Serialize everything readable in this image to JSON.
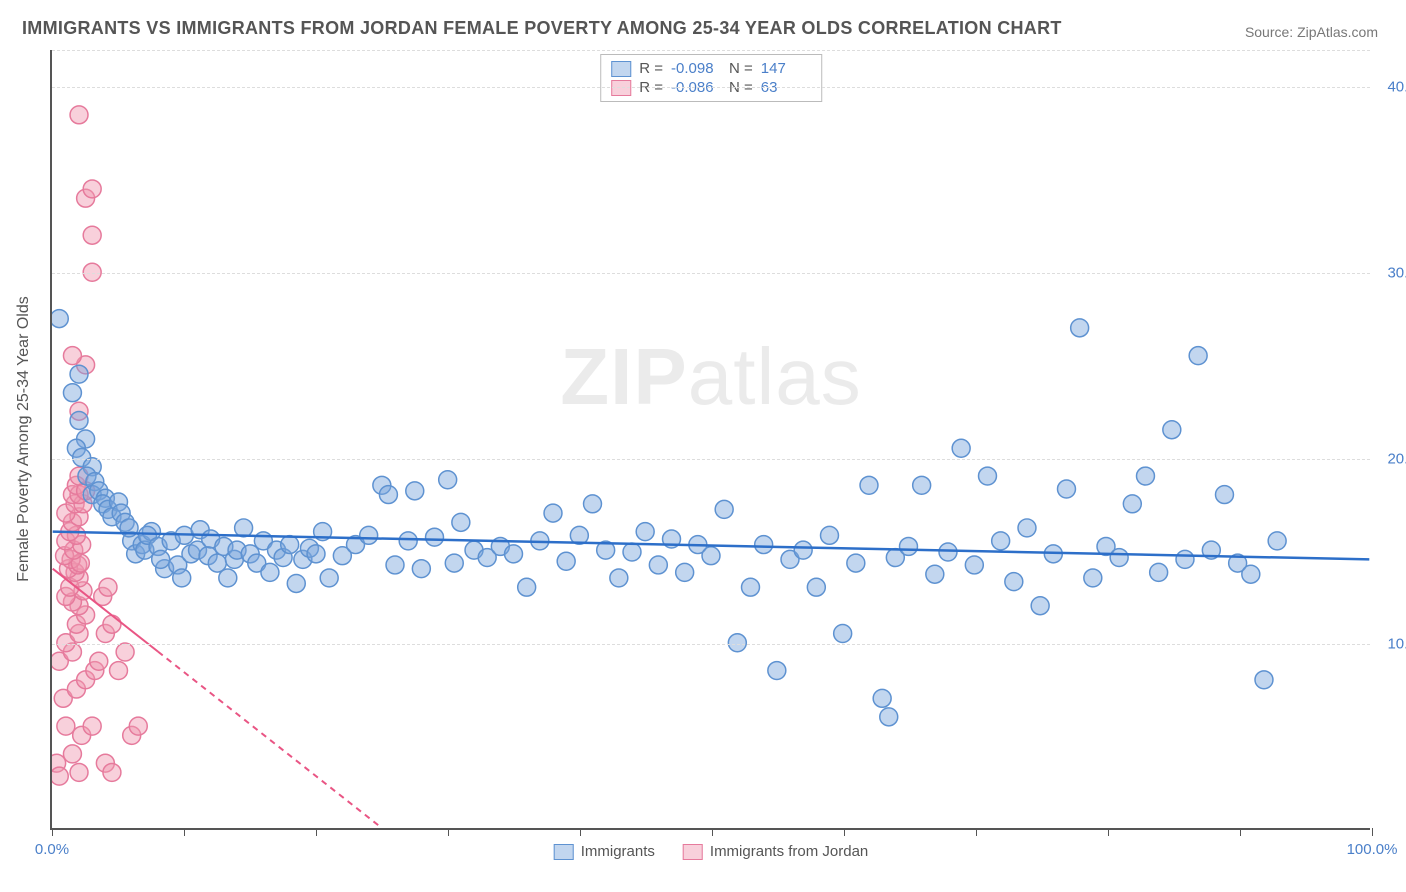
{
  "chart": {
    "type": "scatter",
    "title": "IMMIGRANTS VS IMMIGRANTS FROM JORDAN FEMALE POVERTY AMONG 25-34 YEAR OLDS CORRELATION CHART",
    "source": "Source: ZipAtlas.com",
    "ylabel": "Female Poverty Among 25-34 Year Olds",
    "watermark_bold": "ZIP",
    "watermark_rest": "atlas",
    "xlim": [
      0,
      100
    ],
    "ylim": [
      0,
      42
    ],
    "xtick_positions": [
      0,
      10,
      20,
      30,
      40,
      50,
      60,
      70,
      80,
      90,
      100
    ],
    "xtick_labels_shown": {
      "0": "0.0%",
      "100": "100.0%"
    },
    "ytick_positions": [
      10,
      20,
      30,
      40
    ],
    "ytick_labels": [
      "10.0%",
      "20.0%",
      "30.0%",
      "40.0%"
    ],
    "grid_color": "#dddddd",
    "axis_color": "#555555",
    "tick_label_color": "#4a7fc9",
    "background_color": "#ffffff",
    "series": [
      {
        "name": "Immigrants",
        "marker_fill": "rgba(120,165,220,0.45)",
        "marker_stroke": "#5e92d1",
        "marker_radius": 9,
        "trend_color": "#2d6fc9",
        "trend_width": 2.5,
        "trend_dash": "none",
        "trend": {
          "x1": 0,
          "y1": 16.0,
          "x2": 100,
          "y2": 14.5
        },
        "R": "-0.098",
        "N": "147",
        "points": [
          [
            0.5,
            27.5
          ],
          [
            2,
            24.5
          ],
          [
            1.5,
            23.5
          ],
          [
            2.0,
            22.0
          ],
          [
            2.5,
            21.0
          ],
          [
            1.8,
            20.5
          ],
          [
            2.2,
            20.0
          ],
          [
            3.0,
            19.5
          ],
          [
            2.6,
            19.0
          ],
          [
            3.2,
            18.7
          ],
          [
            3.0,
            18.0
          ],
          [
            3.5,
            18.2
          ],
          [
            4.0,
            17.8
          ],
          [
            3.8,
            17.5
          ],
          [
            4.2,
            17.2
          ],
          [
            5.0,
            17.6
          ],
          [
            4.5,
            16.8
          ],
          [
            5.2,
            17.0
          ],
          [
            5.5,
            16.5
          ],
          [
            6.0,
            15.5
          ],
          [
            5.8,
            16.2
          ],
          [
            6.3,
            14.8
          ],
          [
            6.8,
            15.3
          ],
          [
            7.0,
            15.0
          ],
          [
            7.5,
            16.0
          ],
          [
            7.2,
            15.8
          ],
          [
            8.0,
            15.2
          ],
          [
            8.5,
            14.0
          ],
          [
            8.2,
            14.5
          ],
          [
            9.0,
            15.5
          ],
          [
            9.5,
            14.2
          ],
          [
            9.8,
            13.5
          ],
          [
            10.0,
            15.8
          ],
          [
            10.5,
            14.8
          ],
          [
            11.0,
            15.0
          ],
          [
            11.2,
            16.1
          ],
          [
            11.8,
            14.7
          ],
          [
            12.0,
            15.6
          ],
          [
            12.5,
            14.3
          ],
          [
            13.0,
            15.2
          ],
          [
            13.3,
            13.5
          ],
          [
            13.8,
            14.5
          ],
          [
            14.0,
            15.0
          ],
          [
            14.5,
            16.2
          ],
          [
            15.0,
            14.8
          ],
          [
            15.5,
            14.3
          ],
          [
            16.0,
            15.5
          ],
          [
            16.5,
            13.8
          ],
          [
            17.0,
            15.0
          ],
          [
            17.5,
            14.6
          ],
          [
            18.0,
            15.3
          ],
          [
            18.5,
            13.2
          ],
          [
            19.0,
            14.5
          ],
          [
            19.5,
            15.1
          ],
          [
            20.0,
            14.8
          ],
          [
            20.5,
            16.0
          ],
          [
            21.0,
            13.5
          ],
          [
            22.0,
            14.7
          ],
          [
            23.0,
            15.3
          ],
          [
            24.0,
            15.8
          ],
          [
            25.0,
            18.5
          ],
          [
            25.5,
            18.0
          ],
          [
            26.0,
            14.2
          ],
          [
            27.0,
            15.5
          ],
          [
            27.5,
            18.2
          ],
          [
            28.0,
            14.0
          ],
          [
            29.0,
            15.7
          ],
          [
            30.0,
            18.8
          ],
          [
            30.5,
            14.3
          ],
          [
            31.0,
            16.5
          ],
          [
            32.0,
            15.0
          ],
          [
            33.0,
            14.6
          ],
          [
            34.0,
            15.2
          ],
          [
            35.0,
            14.8
          ],
          [
            36.0,
            13.0
          ],
          [
            37.0,
            15.5
          ],
          [
            38.0,
            17.0
          ],
          [
            39.0,
            14.4
          ],
          [
            40.0,
            15.8
          ],
          [
            41.0,
            17.5
          ],
          [
            42.0,
            15.0
          ],
          [
            43.0,
            13.5
          ],
          [
            44.0,
            14.9
          ],
          [
            45.0,
            16.0
          ],
          [
            46.0,
            14.2
          ],
          [
            47.0,
            15.6
          ],
          [
            48.0,
            13.8
          ],
          [
            49.0,
            15.3
          ],
          [
            50.0,
            14.7
          ],
          [
            51.0,
            17.2
          ],
          [
            52.0,
            10.0
          ],
          [
            53.0,
            13.0
          ],
          [
            54.0,
            15.3
          ],
          [
            55.0,
            8.5
          ],
          [
            56.0,
            14.5
          ],
          [
            57.0,
            15.0
          ],
          [
            58.0,
            13.0
          ],
          [
            59.0,
            15.8
          ],
          [
            60.0,
            10.5
          ],
          [
            61.0,
            14.3
          ],
          [
            62.0,
            18.5
          ],
          [
            63.0,
            7.0
          ],
          [
            63.5,
            6.0
          ],
          [
            64.0,
            14.6
          ],
          [
            65.0,
            15.2
          ],
          [
            66.0,
            18.5
          ],
          [
            67.0,
            13.7
          ],
          [
            68.0,
            14.9
          ],
          [
            69.0,
            20.5
          ],
          [
            70.0,
            14.2
          ],
          [
            71.0,
            19.0
          ],
          [
            72.0,
            15.5
          ],
          [
            73.0,
            13.3
          ],
          [
            74.0,
            16.2
          ],
          [
            75.0,
            12.0
          ],
          [
            76.0,
            14.8
          ],
          [
            77.0,
            18.3
          ],
          [
            78.0,
            27.0
          ],
          [
            79.0,
            13.5
          ],
          [
            80.0,
            15.2
          ],
          [
            81.0,
            14.6
          ],
          [
            82.0,
            17.5
          ],
          [
            83.0,
            19.0
          ],
          [
            84.0,
            13.8
          ],
          [
            85.0,
            21.5
          ],
          [
            86.0,
            14.5
          ],
          [
            87.0,
            25.5
          ],
          [
            88.0,
            15.0
          ],
          [
            89.0,
            18.0
          ],
          [
            90.0,
            14.3
          ],
          [
            91.0,
            13.7
          ],
          [
            92.0,
            8.0
          ],
          [
            93.0,
            15.5
          ]
        ]
      },
      {
        "name": "Immigrants from Jordan",
        "marker_fill": "rgba(240,150,175,0.45)",
        "marker_stroke": "#e67a9c",
        "marker_radius": 9,
        "trend_color": "#e95584",
        "trend_width": 2,
        "trend_dash": "6 5",
        "trend": {
          "x1": 0,
          "y1": 14.0,
          "x2": 25,
          "y2": 0
        },
        "trend_solid_until_x": 8,
        "R": "-0.086",
        "N": "63",
        "points": [
          [
            0.3,
            3.5
          ],
          [
            0.5,
            2.8
          ],
          [
            1.5,
            4.0
          ],
          [
            2.0,
            3.0
          ],
          [
            4.0,
            3.5
          ],
          [
            4.5,
            3.0
          ],
          [
            1.0,
            5.5
          ],
          [
            2.2,
            5.0
          ],
          [
            3.0,
            5.5
          ],
          [
            0.8,
            7.0
          ],
          [
            1.8,
            7.5
          ],
          [
            2.5,
            8.0
          ],
          [
            3.2,
            8.5
          ],
          [
            0.5,
            9.0
          ],
          [
            1.5,
            9.5
          ],
          [
            1.0,
            10.0
          ],
          [
            2.0,
            10.5
          ],
          [
            1.8,
            11.0
          ],
          [
            2.5,
            11.5
          ],
          [
            2.0,
            12.0
          ],
          [
            1.5,
            12.2
          ],
          [
            1.0,
            12.5
          ],
          [
            2.3,
            12.8
          ],
          [
            1.3,
            13.0
          ],
          [
            2.0,
            13.5
          ],
          [
            1.7,
            13.8
          ],
          [
            1.2,
            14.0
          ],
          [
            1.9,
            14.2
          ],
          [
            1.4,
            14.5
          ],
          [
            2.1,
            14.3
          ],
          [
            0.9,
            14.7
          ],
          [
            1.6,
            15.0
          ],
          [
            2.2,
            15.3
          ],
          [
            1.0,
            15.5
          ],
          [
            1.8,
            15.8
          ],
          [
            1.3,
            16.0
          ],
          [
            1.5,
            16.5
          ],
          [
            2.0,
            16.8
          ],
          [
            1.0,
            17.0
          ],
          [
            1.7,
            17.5
          ],
          [
            2.3,
            17.5
          ],
          [
            1.5,
            18.0
          ],
          [
            2.0,
            18.0
          ],
          [
            1.8,
            18.5
          ],
          [
            2.5,
            18.2
          ],
          [
            2.0,
            19.0
          ],
          [
            2.0,
            22.5
          ],
          [
            2.5,
            25.0
          ],
          [
            1.5,
            25.5
          ],
          [
            3.0,
            30.0
          ],
          [
            3.0,
            32.0
          ],
          [
            2.5,
            34.0
          ],
          [
            3.0,
            34.5
          ],
          [
            2.0,
            38.5
          ],
          [
            3.5,
            9.0
          ],
          [
            4.0,
            10.5
          ],
          [
            4.5,
            11.0
          ],
          [
            3.8,
            12.5
          ],
          [
            4.2,
            13.0
          ],
          [
            5.0,
            8.5
          ],
          [
            5.5,
            9.5
          ],
          [
            6.0,
            5.0
          ],
          [
            6.5,
            5.5
          ]
        ]
      }
    ],
    "legend_top": [
      {
        "swatch_fill": "rgba(120,165,220,0.45)",
        "swatch_stroke": "#5e92d1",
        "R_label": "R =",
        "R": "-0.098",
        "N_label": "N =",
        "N": "147"
      },
      {
        "swatch_fill": "rgba(240,150,175,0.45)",
        "swatch_stroke": "#e67a9c",
        "R_label": "R =",
        "R": "-0.086",
        "N_label": "N =",
        "N": "63"
      }
    ],
    "legend_bottom": [
      {
        "swatch_fill": "rgba(120,165,220,0.45)",
        "swatch_stroke": "#5e92d1",
        "label": "Immigrants"
      },
      {
        "swatch_fill": "rgba(240,150,175,0.45)",
        "swatch_stroke": "#e67a9c",
        "label": "Immigrants from Jordan"
      }
    ]
  }
}
